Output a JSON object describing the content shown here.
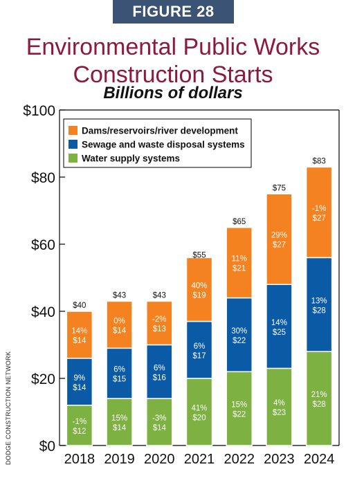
{
  "figure_label": "FIGURE 28",
  "title_line1": "Environmental Public Works",
  "title_line2": "Construction Starts",
  "subtitle": "Billions of dollars",
  "source": "DODGE CONSTRUCTION NETWORK",
  "colors": {
    "figure_label_bg": "#3b5375",
    "title": "#8b1a3c",
    "dams": "#f58220",
    "sewage": "#0b5aa5",
    "water": "#7db142"
  },
  "chart_data": {
    "type": "bar",
    "stacked": true,
    "categories": [
      "2018",
      "2019",
      "2020",
      "2021",
      "2022",
      "2023",
      "2024"
    ],
    "ylim": [
      0,
      100
    ],
    "y_ticks": [
      0,
      20,
      40,
      60,
      80,
      100
    ],
    "y_tick_labels": [
      "$0",
      "$20",
      "$40",
      "$60",
      "$80",
      "$100"
    ],
    "grid": false,
    "legend_position": "top-left",
    "series": [
      {
        "name": "Water supply systems",
        "color": "#7db142",
        "values": [
          12,
          14,
          14,
          20,
          22,
          23,
          28
        ],
        "value_labels": [
          "$12",
          "$14",
          "$14",
          "$20",
          "$22",
          "$23",
          "$28"
        ],
        "pct_labels": [
          "-1%",
          "15%",
          "-3%",
          "41%",
          "15%",
          "4%",
          "21%"
        ]
      },
      {
        "name": "Sewage and waste disposal systems",
        "color": "#0b5aa5",
        "values": [
          14,
          15,
          16,
          17,
          22,
          25,
          28
        ],
        "value_labels": [
          "$14",
          "$15",
          "$16",
          "$17",
          "$22",
          "$25",
          "$28"
        ],
        "pct_labels": [
          "9%",
          "6%",
          "6%",
          "6%",
          "30%",
          "14%",
          "13%"
        ]
      },
      {
        "name": "Dams/reservoirs/river development",
        "color": "#f58220",
        "values": [
          14,
          14,
          13,
          19,
          21,
          27,
          27
        ],
        "value_labels": [
          "$14",
          "$14",
          "$13",
          "$19",
          "$21",
          "$27",
          "$27"
        ],
        "pct_labels": [
          "14%",
          "0%",
          "-2%",
          "40%",
          "11%",
          "29%",
          "-1%"
        ]
      }
    ],
    "totals": [
      40,
      43,
      43,
      55,
      65,
      75,
      83
    ],
    "total_labels": [
      "$40",
      "$43",
      "$43",
      "$55",
      "$65",
      "$75",
      "$83"
    ],
    "legend": [
      "Dams/reservoirs/river development",
      "Sewage and waste disposal systems",
      "Water supply systems"
    ]
  }
}
